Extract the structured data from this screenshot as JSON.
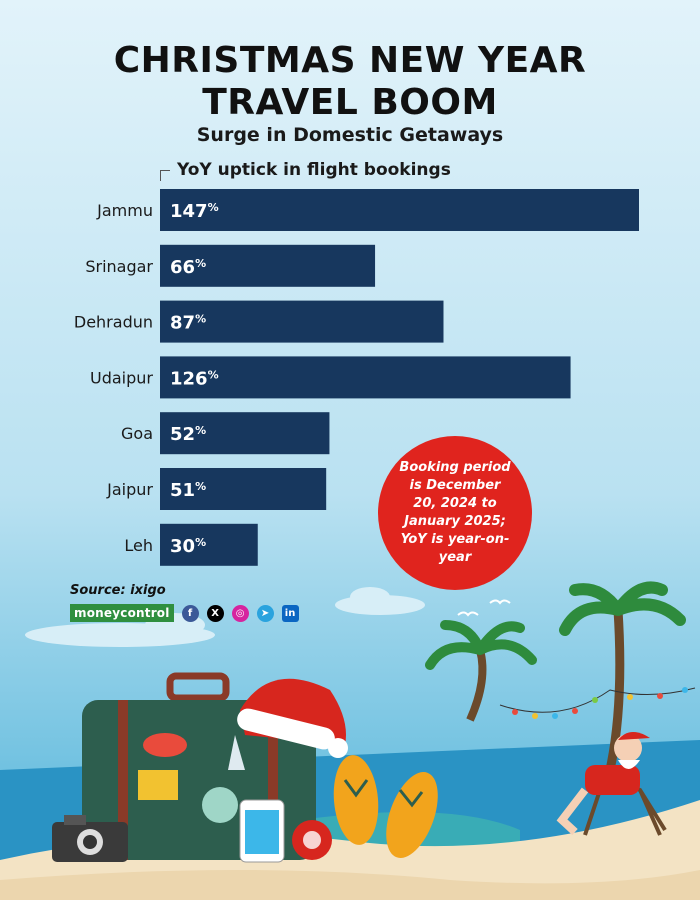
{
  "header": {
    "title_line1": "CHRISTMAS NEW YEAR",
    "title_line2": "TRAVEL BOOM",
    "subtitle": "Surge in Domestic Getaways"
  },
  "chart_data": {
    "type": "bar",
    "orientation": "horizontal",
    "title": "YoY uptick in flight bookings",
    "categories": [
      "Jammu",
      "Srinagar",
      "Dehradun",
      "Udaipur",
      "Goa",
      "Jaipur",
      "Leh"
    ],
    "values": [
      147,
      66,
      87,
      126,
      52,
      51,
      30
    ],
    "value_suffix": "%",
    "bar_color": "#17375e",
    "xlim": [
      0,
      147
    ],
    "grid": false
  },
  "note": "Booking period is December 20, 2024 to January 2025; YoY is year-on-year",
  "footer": {
    "source": "Source: ixigo",
    "brand": "moneycontrol",
    "social_icons": [
      "facebook-icon",
      "x-icon",
      "instagram-icon",
      "telegram-icon",
      "linkedin-icon"
    ]
  },
  "colors": {
    "accent_red": "#e0241e",
    "sky_top": "#bfe4f3",
    "sky_bottom": "#4fb3d9",
    "sand": "#f3e3c4"
  }
}
